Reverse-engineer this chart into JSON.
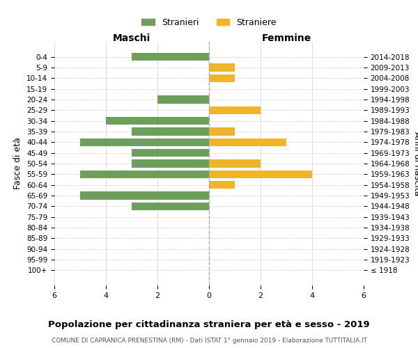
{
  "age_groups": [
    "100+",
    "95-99",
    "90-94",
    "85-89",
    "80-84",
    "75-79",
    "70-74",
    "65-69",
    "60-64",
    "55-59",
    "50-54",
    "45-49",
    "40-44",
    "35-39",
    "30-34",
    "25-29",
    "20-24",
    "15-19",
    "10-14",
    "5-9",
    "0-4"
  ],
  "birth_years": [
    "≤ 1918",
    "1919-1923",
    "1924-1928",
    "1929-1933",
    "1934-1938",
    "1939-1943",
    "1944-1948",
    "1949-1953",
    "1954-1958",
    "1959-1963",
    "1964-1968",
    "1969-1973",
    "1974-1978",
    "1979-1983",
    "1984-1988",
    "1989-1993",
    "1994-1998",
    "1999-2003",
    "2004-2008",
    "2009-2013",
    "2014-2018"
  ],
  "males": [
    0,
    0,
    0,
    0,
    0,
    0,
    3,
    5,
    0,
    5,
    3,
    3,
    5,
    3,
    4,
    0,
    2,
    0,
    0,
    0,
    3
  ],
  "females": [
    0,
    0,
    0,
    0,
    0,
    0,
    0,
    0,
    1,
    4,
    2,
    0,
    3,
    1,
    0,
    2,
    0,
    0,
    1,
    1,
    0
  ],
  "male_color": "#6e9e5b",
  "female_color": "#f0b429",
  "title": "Popolazione per cittadinanza straniera per età e sesso - 2019",
  "subtitle": "COMUNE DI CAPRANICA PRENESTINA (RM) - Dati ISTAT 1° gennaio 2019 - Elaborazione TUTTITALIA.IT",
  "legend_male": "Stranieri",
  "legend_female": "Straniere",
  "xlabel_left": "Maschi",
  "xlabel_right": "Femmine",
  "ylabel_left": "Fasce di età",
  "ylabel_right": "Anni di nascita",
  "xlim": 6,
  "background_color": "#ffffff",
  "grid_color": "#cccccc",
  "dashed_line_color": "#aaaaaa"
}
